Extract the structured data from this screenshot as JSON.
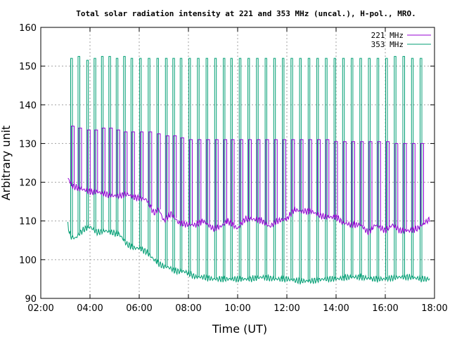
{
  "chart_data": {
    "type": "line",
    "title": "Total solar radiation intensity at 221 and 353 MHz (uncal.), H-pol., MRO.",
    "xlabel": "Time (UT)",
    "ylabel": "Arbitrary unit",
    "xlim": [
      2,
      18
    ],
    "ylim": [
      90,
      160
    ],
    "xticks": [
      2,
      4,
      6,
      8,
      10,
      12,
      14,
      16,
      18
    ],
    "xtick_labels": [
      "02:00",
      "04:00",
      "06:00",
      "08:00",
      "10:00",
      "12:00",
      "14:00",
      "16:00",
      "18:00"
    ],
    "yticks": [
      90,
      100,
      110,
      120,
      130,
      140,
      150,
      160
    ],
    "ytick_labels": [
      "90",
      "100",
      "110",
      "120",
      "130",
      "140",
      "150",
      "160"
    ],
    "grid": true,
    "legend_position": "top-right",
    "colors": {
      "s221": "#9400d3",
      "s353": "#009e73"
    },
    "series": [
      {
        "name": "221 MHz",
        "x": [
          3.1,
          3.3,
          3.5,
          3.8,
          4.0,
          4.3,
          4.6,
          4.9,
          5.2,
          5.5,
          5.8,
          6.0,
          6.3,
          6.6,
          6.8,
          7.0,
          7.3,
          7.6,
          8.0,
          8.3,
          8.6,
          9.0,
          9.3,
          9.6,
          10.0,
          10.3,
          10.6,
          11.0,
          11.3,
          11.6,
          12.0,
          12.3,
          12.6,
          13.0,
          13.3,
          13.6,
          14.0,
          14.3,
          14.6,
          15.0,
          15.3,
          15.6,
          16.0,
          16.3,
          16.6,
          17.0,
          17.3,
          17.6,
          17.8
        ],
        "values": [
          121,
          119,
          118.5,
          118,
          117.5,
          117.5,
          117,
          116.5,
          116.5,
          117,
          116,
          116,
          115.5,
          112,
          113,
          110,
          112,
          109.5,
          109,
          109,
          110,
          108,
          108.5,
          110,
          108,
          110.5,
          110.5,
          110,
          108.5,
          110,
          110.5,
          113,
          112.5,
          112.5,
          111.5,
          111,
          111,
          109.5,
          109,
          109,
          107,
          109,
          107.5,
          109,
          107.5,
          107.5,
          108,
          109.5,
          110.5
        ],
        "spikes": {
          "times": [
            3.3,
            3.6,
            3.95,
            4.25,
            4.55,
            4.85,
            5.15,
            5.45,
            5.75,
            6.1,
            6.45,
            6.8,
            7.15,
            7.45,
            7.75,
            8.1,
            8.45,
            8.8,
            9.15,
            9.5,
            9.8,
            10.15,
            10.5,
            10.85,
            11.2,
            11.55,
            11.9,
            12.25,
            12.6,
            12.95,
            13.3,
            13.65,
            14.0,
            14.35,
            14.7,
            15.05,
            15.4,
            15.75,
            16.1,
            16.45,
            16.8,
            17.15,
            17.5
          ],
          "peaks": [
            134.5,
            134,
            133.5,
            133.5,
            134,
            134,
            133.5,
            133,
            133,
            133,
            133,
            132.5,
            132,
            132,
            131.5,
            131,
            131,
            131,
            131,
            131,
            131,
            131,
            131,
            131,
            131,
            131,
            131,
            131,
            131,
            131,
            131,
            131,
            130.5,
            130.5,
            130.5,
            130.5,
            130.5,
            130.5,
            130.5,
            130,
            130,
            130,
            130
          ]
        }
      },
      {
        "name": "353 MHz",
        "x": [
          3.1,
          3.2,
          3.4,
          3.6,
          3.8,
          4.0,
          4.3,
          4.6,
          4.9,
          5.2,
          5.5,
          5.8,
          6.0,
          6.3,
          6.6,
          6.9,
          7.2,
          7.5,
          7.8,
          8.0,
          8.3,
          8.6,
          9.0,
          9.5,
          10.0,
          10.5,
          11.0,
          11.5,
          12.0,
          12.5,
          13.0,
          13.5,
          14.0,
          14.5,
          15.0,
          15.5,
          16.0,
          16.5,
          17.0,
          17.5,
          17.8
        ],
        "values": [
          109,
          106,
          105.5,
          107,
          108,
          108.5,
          107,
          107.5,
          107,
          106.5,
          104,
          103,
          103,
          102,
          100,
          98.5,
          98,
          97,
          97,
          96.5,
          95.5,
          95.5,
          95,
          95,
          95,
          95,
          95.5,
          95,
          95,
          94.5,
          94.5,
          95,
          95,
          95.5,
          95.5,
          95,
          95,
          95.5,
          95.5,
          95,
          95
        ],
        "spikes": {
          "times": [
            3.25,
            3.55,
            3.9,
            4.2,
            4.5,
            4.8,
            5.1,
            5.4,
            5.7,
            6.05,
            6.4,
            6.75,
            7.1,
            7.4,
            7.7,
            8.05,
            8.4,
            8.75,
            9.1,
            9.45,
            9.75,
            10.1,
            10.45,
            10.8,
            11.15,
            11.5,
            11.85,
            12.2,
            12.55,
            12.9,
            13.25,
            13.6,
            13.95,
            14.3,
            14.65,
            15.0,
            15.35,
            15.7,
            16.05,
            16.4,
            16.75,
            17.1,
            17.45
          ],
          "peaks": [
            152,
            152.5,
            151.5,
            152,
            152.5,
            152.5,
            152,
            152.5,
            152,
            152,
            152,
            152,
            152,
            152,
            152,
            152,
            152,
            152,
            152,
            152,
            152,
            152,
            152,
            152,
            152,
            152,
            152,
            152,
            152,
            152,
            152,
            152,
            152,
            152,
            152,
            152,
            152,
            152,
            152,
            152.5,
            152.5,
            152,
            152
          ]
        }
      }
    ]
  }
}
